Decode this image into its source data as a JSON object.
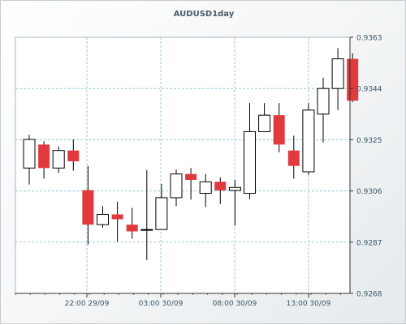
{
  "chart_data": {
    "type": "candlestick",
    "title": "AUDUSD1day",
    "y_ticks": [
      "0.9363",
      "0.9344",
      "0.9325",
      "0.9306",
      "0.9287",
      "0.9268"
    ],
    "ylim": [
      0.9268,
      0.9363
    ],
    "x_ticks": [
      "22:00 29/09",
      "03:00 30/09",
      "08:00 30/09",
      "13:00 30/09"
    ],
    "grid": true,
    "colors": {
      "up": "#ffffff",
      "down": "#e0393e",
      "outline": "#000000",
      "grid": "#9fc9d6"
    },
    "candles": [
      {
        "open": 0.93145,
        "high": 0.93268,
        "low": 0.93084,
        "close": 0.93251
      },
      {
        "open": 0.93232,
        "high": 0.93244,
        "low": 0.93106,
        "close": 0.93145
      },
      {
        "open": 0.93145,
        "high": 0.93225,
        "low": 0.93127,
        "close": 0.9321
      },
      {
        "open": 0.9321,
        "high": 0.93251,
        "low": 0.93135,
        "close": 0.9317
      },
      {
        "open": 0.93063,
        "high": 0.93153,
        "low": 0.92861,
        "close": 0.92935
      },
      {
        "open": 0.92935,
        "high": 0.93004,
        "low": 0.92924,
        "close": 0.92973
      },
      {
        "open": 0.92973,
        "high": 0.9302,
        "low": 0.92872,
        "close": 0.92955
      },
      {
        "open": 0.92935,
        "high": 0.92997,
        "low": 0.92883,
        "close": 0.9291
      },
      {
        "open": 0.92917,
        "high": 0.93137,
        "low": 0.92804,
        "close": 0.92917
      },
      {
        "open": 0.92917,
        "high": 0.93086,
        "low": 0.92917,
        "close": 0.93035
      },
      {
        "open": 0.93035,
        "high": 0.9314,
        "low": 0.93004,
        "close": 0.93123
      },
      {
        "open": 0.93123,
        "high": 0.93145,
        "low": 0.93028,
        "close": 0.93101
      },
      {
        "open": 0.93051,
        "high": 0.93123,
        "low": 0.93,
        "close": 0.93094
      },
      {
        "open": 0.93094,
        "high": 0.9311,
        "low": 0.93011,
        "close": 0.93062
      },
      {
        "open": 0.93062,
        "high": 0.93101,
        "low": 0.92932,
        "close": 0.93073
      },
      {
        "open": 0.93051,
        "high": 0.93386,
        "low": 0.9303,
        "close": 0.9328
      },
      {
        "open": 0.9328,
        "high": 0.93386,
        "low": 0.9328,
        "close": 0.93341
      },
      {
        "open": 0.93341,
        "high": 0.93386,
        "low": 0.93203,
        "close": 0.93232
      },
      {
        "open": 0.9321,
        "high": 0.93265,
        "low": 0.93106,
        "close": 0.93153
      },
      {
        "open": 0.93131,
        "high": 0.93386,
        "low": 0.9312,
        "close": 0.9336
      },
      {
        "open": 0.93345,
        "high": 0.9348,
        "low": 0.9324,
        "close": 0.9344
      },
      {
        "open": 0.9344,
        "high": 0.9359,
        "low": 0.9336,
        "close": 0.9355
      },
      {
        "open": 0.9355,
        "high": 0.9357,
        "low": 0.9339,
        "close": 0.93395
      }
    ]
  }
}
